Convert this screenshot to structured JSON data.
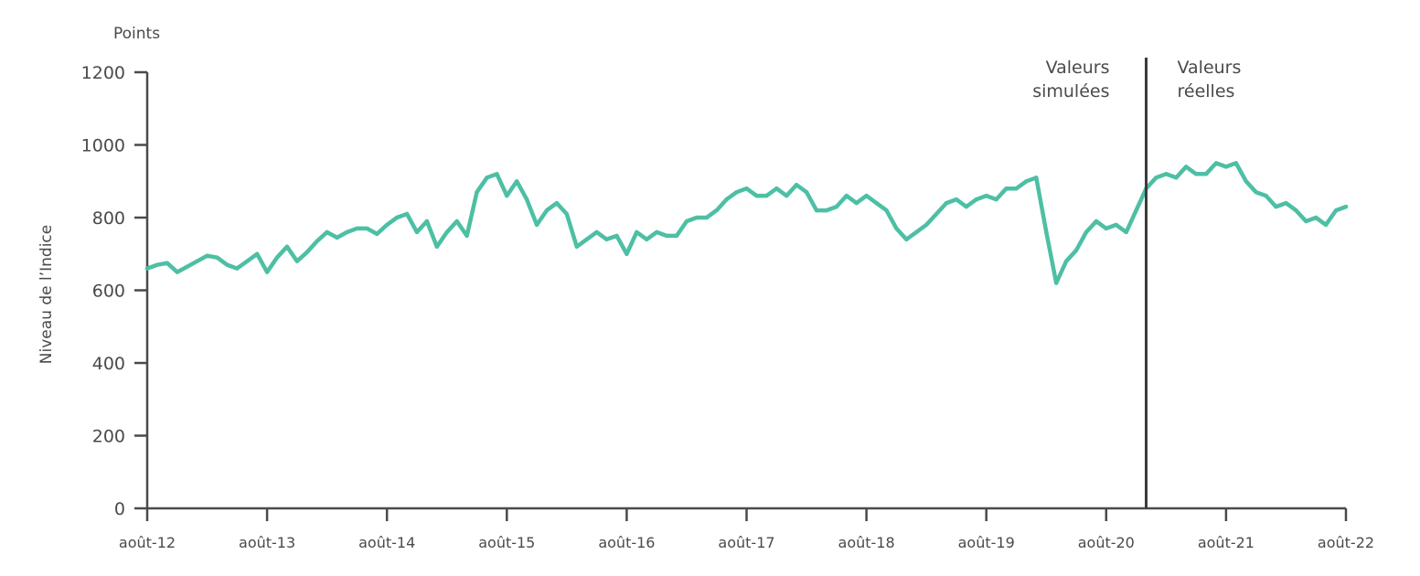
{
  "chart_data": {
    "type": "line",
    "unit_label": "Points",
    "ylabel": "Niveau de l’Indice",
    "xlabel": "",
    "ylim": [
      0,
      1200
    ],
    "yticks": [
      0,
      200,
      400,
      600,
      800,
      1000,
      1200
    ],
    "xlim": [
      "2012-08",
      "2022-08"
    ],
    "xticks": [
      "août-12",
      "août-13",
      "août-14",
      "août-15",
      "août-16",
      "août-17",
      "août-18",
      "août-19",
      "août-20",
      "août-21",
      "août-22"
    ],
    "divider": {
      "date": "2020-12",
      "left_label": [
        "Valeurs",
        "simulées"
      ],
      "right_label": [
        "Valeurs",
        "réelles"
      ]
    },
    "grid": false,
    "line_color": "#4dbfa4",
    "series": [
      {
        "x": [
          "2012-08",
          "2012-09",
          "2012-10",
          "2012-11",
          "2012-12",
          "2013-01",
          "2013-02",
          "2013-03",
          "2013-04",
          "2013-05",
          "2013-06",
          "2013-07",
          "2013-08",
          "2013-09",
          "2013-10",
          "2013-11",
          "2013-12",
          "2014-01",
          "2014-02",
          "2014-03",
          "2014-04",
          "2014-05",
          "2014-06",
          "2014-07",
          "2014-08",
          "2014-09",
          "2014-10",
          "2014-11",
          "2014-12",
          "2015-01",
          "2015-02",
          "2015-03",
          "2015-04",
          "2015-05",
          "2015-06",
          "2015-07",
          "2015-08",
          "2015-09",
          "2015-10",
          "2015-11",
          "2015-12",
          "2016-01",
          "2016-02",
          "2016-03",
          "2016-04",
          "2016-05",
          "2016-06",
          "2016-07",
          "2016-08",
          "2016-09",
          "2016-10",
          "2016-11",
          "2016-12",
          "2017-01",
          "2017-02",
          "2017-03",
          "2017-04",
          "2017-05",
          "2017-06",
          "2017-07",
          "2017-08",
          "2017-09",
          "2017-10",
          "2017-11",
          "2017-12",
          "2018-01",
          "2018-02",
          "2018-03",
          "2018-04",
          "2018-05",
          "2018-06",
          "2018-07",
          "2018-08",
          "2018-09",
          "2018-10",
          "2018-11",
          "2018-12",
          "2019-01",
          "2019-02",
          "2019-03",
          "2019-04",
          "2019-05",
          "2019-06",
          "2019-07",
          "2019-08",
          "2019-09",
          "2019-10",
          "2019-11",
          "2019-12",
          "2020-01",
          "2020-02",
          "2020-03",
          "2020-04",
          "2020-05",
          "2020-06",
          "2020-07",
          "2020-08",
          "2020-09",
          "2020-10",
          "2020-11",
          "2020-12",
          "2021-01",
          "2021-02",
          "2021-03",
          "2021-04",
          "2021-05",
          "2021-06",
          "2021-07",
          "2021-08",
          "2021-09",
          "2021-10",
          "2021-11",
          "2021-12",
          "2022-01",
          "2022-02",
          "2022-03",
          "2022-04",
          "2022-05",
          "2022-06",
          "2022-07",
          "2022-08"
        ],
        "values": [
          660,
          670,
          675,
          650,
          665,
          680,
          695,
          690,
          670,
          660,
          680,
          700,
          650,
          690,
          720,
          680,
          705,
          735,
          760,
          745,
          760,
          770,
          770,
          755,
          780,
          800,
          810,
          760,
          790,
          720,
          760,
          790,
          750,
          870,
          910,
          920,
          860,
          900,
          850,
          780,
          820,
          840,
          810,
          720,
          740,
          760,
          740,
          750,
          700,
          760,
          740,
          760,
          750,
          750,
          790,
          800,
          800,
          820,
          850,
          870,
          880,
          860,
          860,
          880,
          860,
          890,
          870,
          820,
          820,
          830,
          860,
          840,
          860,
          840,
          820,
          770,
          740,
          760,
          780,
          810,
          840,
          850,
          830,
          850,
          860,
          850,
          880,
          880,
          900,
          910,
          760,
          620,
          680,
          710,
          760,
          790,
          770,
          780,
          760,
          820,
          880,
          910,
          920,
          910,
          940,
          920,
          920,
          950,
          940,
          950,
          900,
          870,
          860,
          830,
          840,
          820,
          790,
          800,
          780,
          820,
          830
        ]
      }
    ]
  }
}
